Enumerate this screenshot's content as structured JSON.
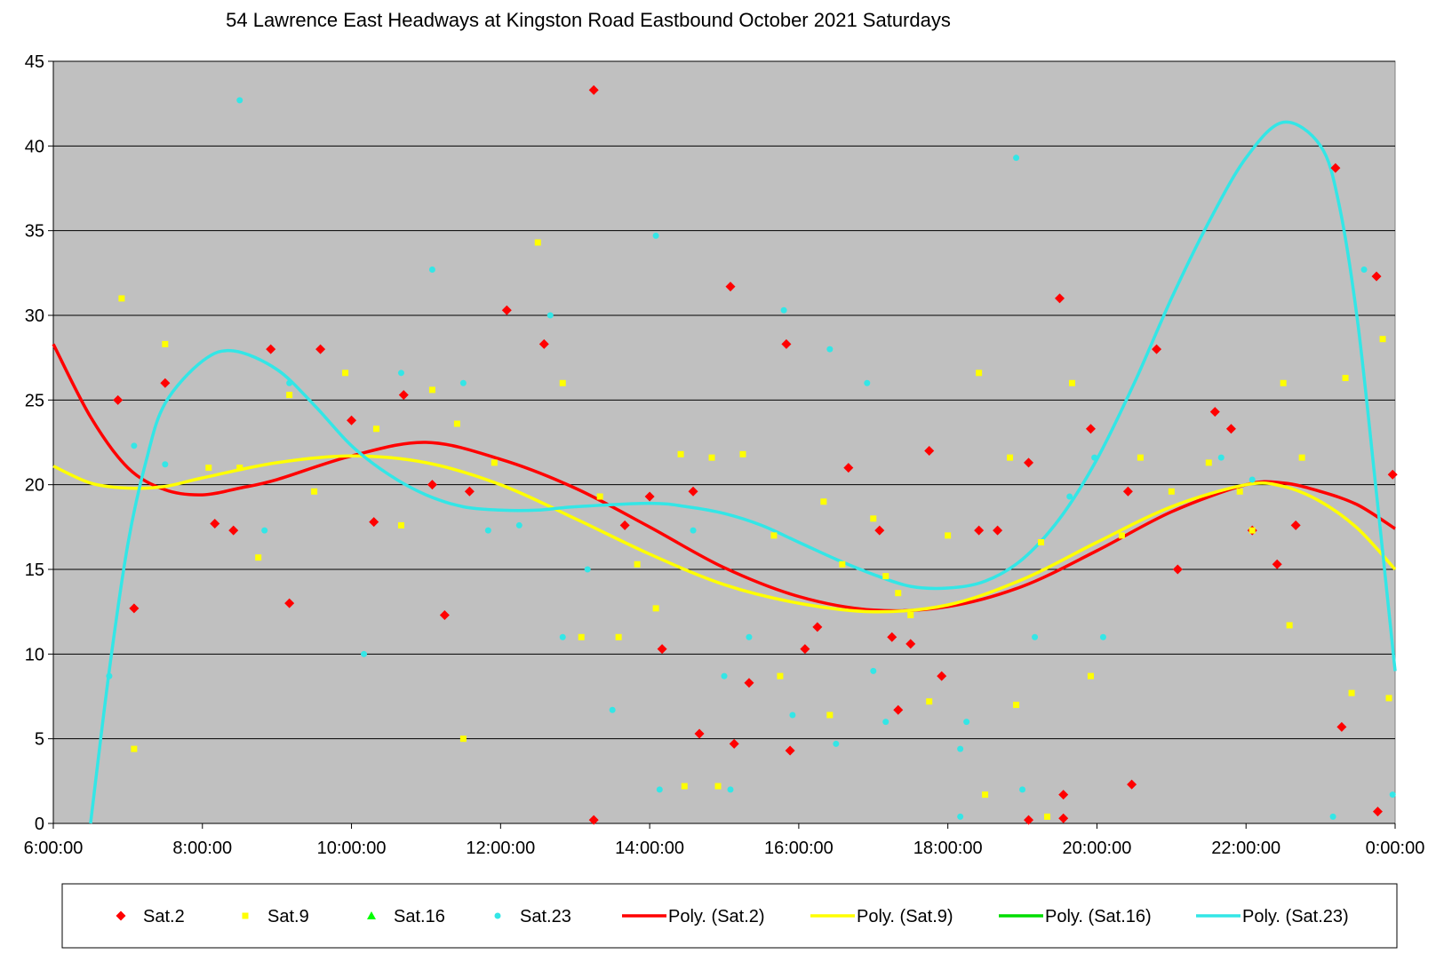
{
  "chart_data": {
    "type": "scatter",
    "title": "54 Lawrence East Headways at Kingston Road Eastbound October 2021  Saturdays",
    "xlabel": "",
    "ylabel": "",
    "xlim": [
      "6:00:00",
      "0:00:00"
    ],
    "ylim": [
      0,
      45
    ],
    "x_ticks": [
      "6:00:00",
      "8:00:00",
      "10:00:00",
      "12:00:00",
      "14:00:00",
      "16:00:00",
      "18:00:00",
      "20:00:00",
      "22:00:00",
      "0:00:00"
    ],
    "y_ticks": [
      "0",
      "5",
      "10",
      "15",
      "20",
      "25",
      "30",
      "35",
      "40",
      "45"
    ],
    "grid": "horizontal",
    "background": "#C0C0C0",
    "legend_position": "bottom",
    "series": [
      {
        "name": "Sat.2",
        "marker": "diamond",
        "color": "#FF0000",
        "points": [
          [
            "06:52",
            25.0
          ],
          [
            "07:05",
            12.7
          ],
          [
            "07:30",
            26.0
          ],
          [
            "08:10",
            17.7
          ],
          [
            "08:25",
            17.3
          ],
          [
            "08:55",
            28.0
          ],
          [
            "09:10",
            13.0
          ],
          [
            "09:35",
            28.0
          ],
          [
            "10:00",
            23.8
          ],
          [
            "10:18",
            17.8
          ],
          [
            "10:42",
            25.3
          ],
          [
            "11:05",
            20.0
          ],
          [
            "11:15",
            12.3
          ],
          [
            "11:35",
            19.6
          ],
          [
            "12:05",
            30.3
          ],
          [
            "12:35",
            28.3
          ],
          [
            "13:15",
            43.3
          ],
          [
            "13:15",
            0.2
          ],
          [
            "13:40",
            17.6
          ],
          [
            "14:00",
            19.3
          ],
          [
            "14:10",
            10.3
          ],
          [
            "14:35",
            19.6
          ],
          [
            "14:40",
            5.3
          ],
          [
            "15:05",
            31.7
          ],
          [
            "15:08",
            4.7
          ],
          [
            "15:20",
            8.3
          ],
          [
            "15:50",
            28.3
          ],
          [
            "15:53",
            4.3
          ],
          [
            "16:05",
            10.3
          ],
          [
            "16:15",
            11.6
          ],
          [
            "16:40",
            21.0
          ],
          [
            "17:05",
            17.3
          ],
          [
            "17:15",
            11.0
          ],
          [
            "17:20",
            6.7
          ],
          [
            "17:30",
            10.6
          ],
          [
            "17:45",
            22.0
          ],
          [
            "17:55",
            8.7
          ],
          [
            "18:25",
            17.3
          ],
          [
            "18:40",
            17.3
          ],
          [
            "19:05",
            21.3
          ],
          [
            "19:05",
            0.2
          ],
          [
            "19:30",
            31.0
          ],
          [
            "19:33",
            1.7
          ],
          [
            "19:33",
            0.3
          ],
          [
            "19:55",
            23.3
          ],
          [
            "20:25",
            19.6
          ],
          [
            "20:28",
            2.3
          ],
          [
            "20:48",
            28.0
          ],
          [
            "21:05",
            15.0
          ],
          [
            "21:35",
            24.3
          ],
          [
            "21:48",
            23.3
          ],
          [
            "22:05",
            17.3
          ],
          [
            "22:25",
            15.3
          ],
          [
            "22:40",
            17.6
          ],
          [
            "23:12",
            38.7
          ],
          [
            "23:17",
            5.7
          ],
          [
            "23:45",
            32.3
          ],
          [
            "23:46",
            0.7
          ],
          [
            "23:58",
            20.6
          ]
        ]
      },
      {
        "name": "Sat.9",
        "marker": "square",
        "color": "#FFFF00",
        "points": [
          [
            "06:55",
            31.0
          ],
          [
            "07:05",
            4.4
          ],
          [
            "07:30",
            28.3
          ],
          [
            "08:05",
            21.0
          ],
          [
            "08:30",
            21.0
          ],
          [
            "08:45",
            15.7
          ],
          [
            "09:10",
            25.3
          ],
          [
            "09:30",
            19.6
          ],
          [
            "09:55",
            26.6
          ],
          [
            "10:20",
            23.3
          ],
          [
            "10:40",
            17.6
          ],
          [
            "11:05",
            25.6
          ],
          [
            "11:25",
            23.6
          ],
          [
            "11:30",
            5.0
          ],
          [
            "11:55",
            21.3
          ],
          [
            "12:30",
            34.3
          ],
          [
            "12:50",
            26.0
          ],
          [
            "13:05",
            11.0
          ],
          [
            "13:20",
            19.3
          ],
          [
            "13:35",
            11.0
          ],
          [
            "13:50",
            15.3
          ],
          [
            "14:05",
            12.7
          ],
          [
            "14:25",
            21.8
          ],
          [
            "14:28",
            2.2
          ],
          [
            "14:50",
            21.6
          ],
          [
            "14:55",
            2.2
          ],
          [
            "15:15",
            21.8
          ],
          [
            "15:40",
            17.0
          ],
          [
            "15:45",
            8.7
          ],
          [
            "16:20",
            19.0
          ],
          [
            "16:25",
            6.4
          ],
          [
            "16:35",
            15.3
          ],
          [
            "17:00",
            18.0
          ],
          [
            "17:10",
            14.6
          ],
          [
            "17:20",
            13.6
          ],
          [
            "17:30",
            12.3
          ],
          [
            "17:45",
            7.2
          ],
          [
            "18:00",
            17.0
          ],
          [
            "18:25",
            26.6
          ],
          [
            "18:30",
            1.7
          ],
          [
            "18:50",
            21.6
          ],
          [
            "18:55",
            7.0
          ],
          [
            "19:15",
            16.6
          ],
          [
            "19:20",
            0.4
          ],
          [
            "19:40",
            26.0
          ],
          [
            "19:55",
            8.7
          ],
          [
            "20:20",
            17.0
          ],
          [
            "20:35",
            21.6
          ],
          [
            "21:00",
            19.6
          ],
          [
            "21:30",
            21.3
          ],
          [
            "21:55",
            19.6
          ],
          [
            "22:05",
            17.3
          ],
          [
            "22:30",
            26.0
          ],
          [
            "22:35",
            11.7
          ],
          [
            "22:45",
            21.6
          ],
          [
            "23:20",
            26.3
          ],
          [
            "23:25",
            7.7
          ],
          [
            "23:50",
            28.6
          ],
          [
            "23:55",
            7.4
          ]
        ]
      },
      {
        "name": "Sat.16",
        "marker": "triangle",
        "color": "#00FF00",
        "points": []
      },
      {
        "name": "Sat.23",
        "marker": "circle",
        "color": "#33E6E6",
        "points": [
          [
            "06:45",
            8.7
          ],
          [
            "07:05",
            22.3
          ],
          [
            "07:30",
            21.2
          ],
          [
            "08:30",
            42.7
          ],
          [
            "08:50",
            17.3
          ],
          [
            "09:10",
            26.0
          ],
          [
            "10:10",
            10.0
          ],
          [
            "10:40",
            26.6
          ],
          [
            "11:05",
            32.7
          ],
          [
            "11:30",
            26.0
          ],
          [
            "11:50",
            17.3
          ],
          [
            "12:15",
            17.6
          ],
          [
            "12:40",
            30.0
          ],
          [
            "12:50",
            11.0
          ],
          [
            "13:10",
            15.0
          ],
          [
            "13:30",
            6.7
          ],
          [
            "14:05",
            34.7
          ],
          [
            "14:08",
            2.0
          ],
          [
            "14:35",
            17.3
          ],
          [
            "15:00",
            8.7
          ],
          [
            "15:05",
            2.0
          ],
          [
            "15:20",
            11.0
          ],
          [
            "15:48",
            30.3
          ],
          [
            "15:55",
            6.4
          ],
          [
            "16:25",
            28.0
          ],
          [
            "16:30",
            4.7
          ],
          [
            "16:55",
            26.0
          ],
          [
            "17:00",
            9.0
          ],
          [
            "17:10",
            6.0
          ],
          [
            "18:10",
            4.4
          ],
          [
            "18:10",
            0.4
          ],
          [
            "18:15",
            6.0
          ],
          [
            "18:55",
            39.3
          ],
          [
            "19:00",
            2.0
          ],
          [
            "19:10",
            11.0
          ],
          [
            "19:38",
            19.3
          ],
          [
            "19:58",
            21.6
          ],
          [
            "20:05",
            11.0
          ],
          [
            "21:40",
            21.6
          ],
          [
            "22:05",
            20.3
          ],
          [
            "23:10",
            0.4
          ],
          [
            "23:35",
            32.7
          ],
          [
            "23:58",
            1.7
          ]
        ]
      },
      {
        "name": "Poly. (Sat.2)",
        "type": "line",
        "color": "#FF0000",
        "points": [
          [
            "06:00",
            28.3
          ],
          [
            "06:30",
            24.0
          ],
          [
            "07:00",
            21.0
          ],
          [
            "07:30",
            19.7
          ],
          [
            "08:00",
            19.4
          ],
          [
            "08:30",
            19.8
          ],
          [
            "09:00",
            20.3
          ],
          [
            "10:00",
            21.7
          ],
          [
            "11:00",
            22.5
          ],
          [
            "12:00",
            21.5
          ],
          [
            "13:00",
            19.8
          ],
          [
            "14:00",
            17.5
          ],
          [
            "15:00",
            15.1
          ],
          [
            "16:00",
            13.4
          ],
          [
            "17:00",
            12.6
          ],
          [
            "18:00",
            12.8
          ],
          [
            "19:00",
            14.0
          ],
          [
            "20:00",
            16.1
          ],
          [
            "21:00",
            18.4
          ],
          [
            "22:00",
            20.0
          ],
          [
            "22:30",
            20.1
          ],
          [
            "23:00",
            19.6
          ],
          [
            "23:30",
            18.8
          ],
          [
            "24:00",
            17.4
          ]
        ]
      },
      {
        "name": "Poly. (Sat.9)",
        "type": "line",
        "color": "#FFFF00",
        "points": [
          [
            "06:00",
            21.1
          ],
          [
            "06:30",
            20.1
          ],
          [
            "07:00",
            19.8
          ],
          [
            "07:30",
            19.9
          ],
          [
            "08:00",
            20.4
          ],
          [
            "09:00",
            21.3
          ],
          [
            "10:00",
            21.7
          ],
          [
            "11:00",
            21.3
          ],
          [
            "12:00",
            20.0
          ],
          [
            "13:00",
            18.0
          ],
          [
            "14:00",
            15.9
          ],
          [
            "15:00",
            14.1
          ],
          [
            "16:00",
            13.0
          ],
          [
            "17:00",
            12.5
          ],
          [
            "18:00",
            12.9
          ],
          [
            "19:00",
            14.4
          ],
          [
            "20:00",
            16.6
          ],
          [
            "21:00",
            18.7
          ],
          [
            "22:00",
            20.0
          ],
          [
            "22:30",
            19.9
          ],
          [
            "23:00",
            19.0
          ],
          [
            "23:30",
            17.4
          ],
          [
            "24:00",
            15.0
          ]
        ]
      },
      {
        "name": "Poly. (Sat.16)",
        "type": "line",
        "color": "#00DD00",
        "points": []
      },
      {
        "name": "Poly. (Sat.23)",
        "type": "line",
        "color": "#33E6E6",
        "points": [
          [
            "06:30",
            0.0
          ],
          [
            "06:45",
            9.0
          ],
          [
            "07:00",
            16.5
          ],
          [
            "07:15",
            21.5
          ],
          [
            "07:30",
            24.8
          ],
          [
            "08:00",
            27.3
          ],
          [
            "08:25",
            27.9
          ],
          [
            "09:00",
            26.8
          ],
          [
            "09:30",
            24.7
          ],
          [
            "10:00",
            22.3
          ],
          [
            "10:30",
            20.6
          ],
          [
            "11:00",
            19.4
          ],
          [
            "11:30",
            18.7
          ],
          [
            "12:00",
            18.5
          ],
          [
            "12:30",
            18.5
          ],
          [
            "13:00",
            18.7
          ],
          [
            "14:00",
            18.9
          ],
          [
            "14:30",
            18.7
          ],
          [
            "15:00",
            18.3
          ],
          [
            "15:30",
            17.6
          ],
          [
            "16:00",
            16.6
          ],
          [
            "16:30",
            15.6
          ],
          [
            "17:00",
            14.7
          ],
          [
            "17:30",
            14.0
          ],
          [
            "18:00",
            13.9
          ],
          [
            "18:30",
            14.3
          ],
          [
            "19:00",
            15.6
          ],
          [
            "19:30",
            18.0
          ],
          [
            "20:00",
            21.5
          ],
          [
            "20:30",
            26.0
          ],
          [
            "21:00",
            31.0
          ],
          [
            "21:30",
            35.5
          ],
          [
            "22:00",
            39.3
          ],
          [
            "22:30",
            41.4
          ],
          [
            "23:00",
            40.0
          ],
          [
            "23:15",
            36.5
          ],
          [
            "23:30",
            29.5
          ],
          [
            "23:45",
            19.5
          ],
          [
            "24:00",
            9.0
          ]
        ]
      }
    ]
  }
}
